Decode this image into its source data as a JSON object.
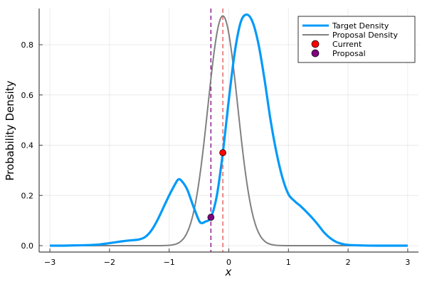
{
  "chart_data": {
    "type": "line",
    "title": "",
    "xlabel": "x",
    "ylabel": "Probability Density",
    "xlim": [
      -3.2,
      3.2
    ],
    "ylim": [
      -0.025,
      0.945
    ],
    "xticks": [
      -3,
      -2,
      -1,
      0,
      1,
      2,
      3
    ],
    "xtick_labels": [
      "−3",
      "−2",
      "−1",
      "0",
      "1",
      "2",
      "3"
    ],
    "yticks": [
      0,
      0.2,
      0.4,
      0.6,
      0.8
    ],
    "ytick_labels": [
      "0.0",
      "0.2",
      "0.4",
      "0.6",
      "0.8"
    ],
    "grid": true,
    "legend_position": "top-right",
    "series": [
      {
        "name": "Target Density",
        "color": "#009af9",
        "x": [
          -3,
          -2.8,
          -2.6,
          -2.4,
          -2.2,
          -2.0,
          -1.8,
          -1.7,
          -1.6,
          -1.5,
          -1.4,
          -1.3,
          -1.2,
          -1.1,
          -1.0,
          -0.9,
          -0.85,
          -0.8,
          -0.7,
          -0.6,
          -0.5,
          -0.45,
          -0.4,
          -0.3,
          -0.2,
          -0.1,
          0,
          0.1,
          0.2,
          0.3,
          0.4,
          0.5,
          0.6,
          0.7,
          0.8,
          0.9,
          1.0,
          1.1,
          1.2,
          1.3,
          1.4,
          1.5,
          1.6,
          1.7,
          1.8,
          1.9,
          2.0,
          2.2,
          2.5,
          3.0
        ],
        "y": [
          0,
          0,
          0.001,
          0.002,
          0.004,
          0.01,
          0.017,
          0.02,
          0.022,
          0.025,
          0.035,
          0.06,
          0.1,
          0.15,
          0.2,
          0.245,
          0.263,
          0.26,
          0.225,
          0.16,
          0.1,
          0.09,
          0.095,
          0.113,
          0.2,
          0.37,
          0.58,
          0.77,
          0.89,
          0.92,
          0.89,
          0.8,
          0.66,
          0.5,
          0.37,
          0.27,
          0.205,
          0.178,
          0.158,
          0.135,
          0.11,
          0.082,
          0.052,
          0.03,
          0.015,
          0.007,
          0.003,
          0.001,
          0,
          0
        ]
      },
      {
        "name": "Proposal Density",
        "color": "#808080",
        "mean": -0.1,
        "sd": 0.25,
        "peak": 0.915
      }
    ],
    "points": [
      {
        "name": "Current",
        "x": -0.1,
        "y": 0.37,
        "color": "#ff0000"
      },
      {
        "name": "Proposal",
        "x": -0.3,
        "y": 0.113,
        "color": "#800080"
      }
    ],
    "vlines": [
      {
        "x": -0.3,
        "color": "#800080"
      },
      {
        "x": -0.1,
        "color": "#e05050"
      }
    ]
  }
}
